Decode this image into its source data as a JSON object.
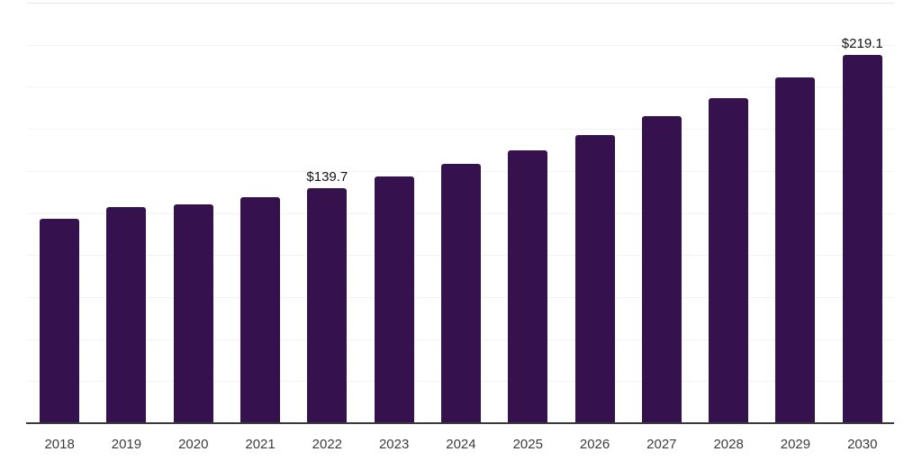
{
  "chart_data": {
    "type": "bar",
    "title": "",
    "xlabel": "",
    "ylabel": "",
    "categories": [
      "2018",
      "2019",
      "2020",
      "2021",
      "2022",
      "2023",
      "2024",
      "2025",
      "2026",
      "2027",
      "2028",
      "2029",
      "2030"
    ],
    "values": [
      121.6,
      128.6,
      130.2,
      134.4,
      139.7,
      146.6,
      154.0,
      162.1,
      171.3,
      182.7,
      193.3,
      205.8,
      219.1
    ],
    "data_labels": [
      {
        "category": "2022",
        "text": "$139.7"
      },
      {
        "category": "2030",
        "text": "$219.1"
      }
    ],
    "ylim": [
      0,
      250
    ],
    "gridline_step": 25,
    "grid": "horizontal",
    "legend": "none",
    "y_axis_labels_visible": false,
    "currency_prefix": "$"
  },
  "colors": {
    "background": "#ffffff",
    "bar": "#35114e",
    "axis_line": "#3a3a3a",
    "gridline": "#f4f2f4",
    "gridline_top": "#e8e6e8",
    "tick_label": "#3c3c3c",
    "data_label": "#141414"
  }
}
